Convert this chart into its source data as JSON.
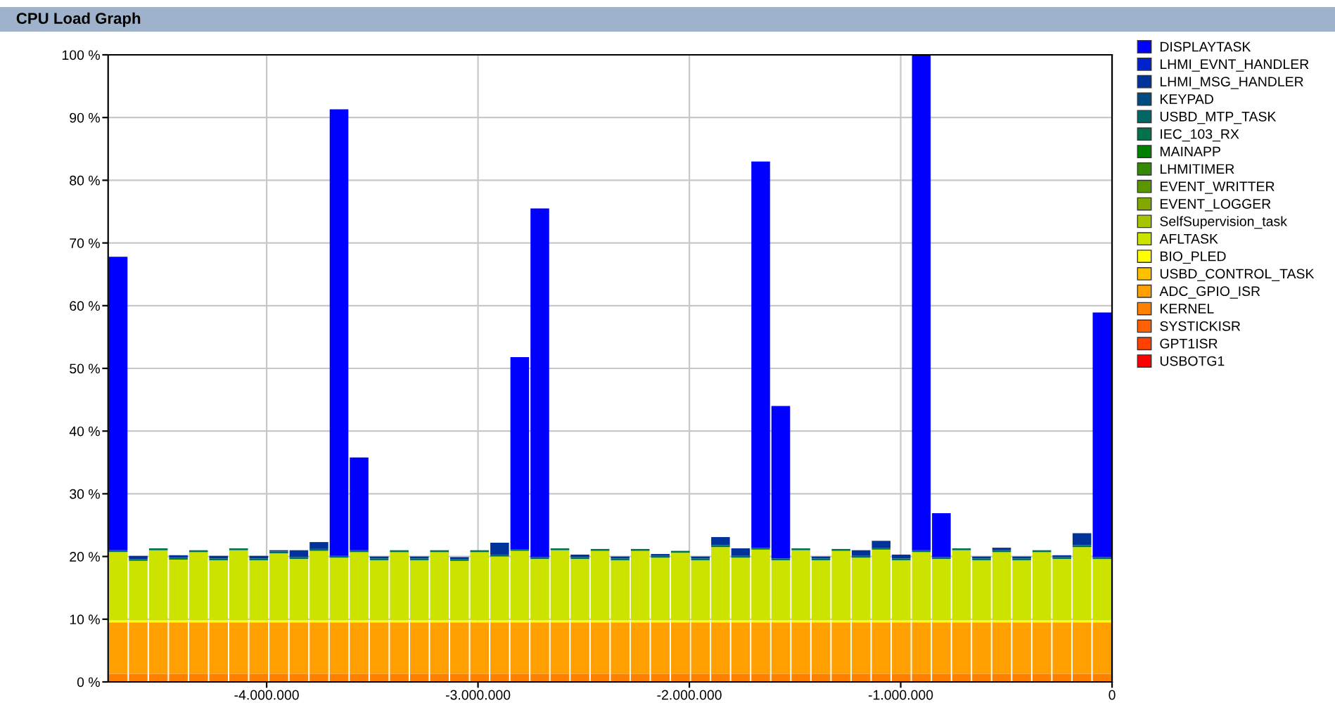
{
  "chart_data": {
    "type": "bar",
    "title": "CPU Load Graph",
    "stacked": true,
    "x": [
      -4702500,
      -4607500,
      -4512500,
      -4417500,
      -4322500,
      -4227500,
      -4132500,
      -4037500,
      -3942500,
      -3847500,
      -3752500,
      -3657500,
      -3562500,
      -3467500,
      -3372500,
      -3277500,
      -3182500,
      -3087500,
      -2992500,
      -2897500,
      -2802500,
      -2707500,
      -2612500,
      -2517500,
      -2422500,
      -2327500,
      -2232500,
      -2137500,
      -2042500,
      -1947500,
      -1852500,
      -1757500,
      -1662500,
      -1567500,
      -1472500,
      -1377500,
      -1282500,
      -1187500,
      -1092500,
      -997500,
      -902500,
      -807500,
      -712500,
      -617500,
      -522500,
      -427500,
      -332500,
      -237500,
      -142500,
      -47500
    ],
    "xlim": [
      -4750000,
      0
    ],
    "xticks": [
      {
        "value": -4000000,
        "label": "-4.000.000"
      },
      {
        "value": -3000000,
        "label": "-3.000.000"
      },
      {
        "value": -2000000,
        "label": "-2.000.000"
      },
      {
        "value": -1000000,
        "label": "-1.000.000"
      },
      0
    ],
    "ylim": [
      0,
      100
    ],
    "yticks": [
      {
        "value": 0,
        "label": "0 %"
      },
      {
        "value": 10,
        "label": "10 %"
      },
      {
        "value": 20,
        "label": "20 %"
      },
      {
        "value": 30,
        "label": "30 %"
      },
      {
        "value": 40,
        "label": "40 %"
      },
      {
        "value": 50,
        "label": "50 %"
      },
      {
        "value": 60,
        "label": "60 %"
      },
      {
        "value": 70,
        "label": "70 %"
      },
      {
        "value": 80,
        "label": "80 %"
      },
      {
        "value": 90,
        "label": "90 %"
      },
      {
        "value": 100,
        "label": "100 %"
      }
    ],
    "grid": true,
    "legend": "right",
    "series": [
      {
        "name": "USBOTG1",
        "color": "#ff0000",
        "values": [
          0,
          0,
          0,
          0,
          0,
          0,
          0,
          0,
          0,
          0,
          0,
          0,
          0,
          0,
          0,
          0,
          0,
          0,
          0,
          0,
          0,
          0,
          0,
          0,
          0,
          0,
          0,
          0,
          0,
          0,
          0,
          0,
          0,
          0,
          0,
          0,
          0,
          0,
          0,
          0,
          0,
          0,
          0,
          0,
          0,
          0,
          0,
          0,
          0,
          0
        ]
      },
      {
        "name": "GPT1ISR",
        "color": "#ff4000",
        "values": [
          0,
          0,
          0,
          0,
          0,
          0,
          0,
          0,
          0,
          0,
          0,
          0,
          0,
          0,
          0,
          0,
          0,
          0,
          0,
          0,
          0,
          0,
          0,
          0,
          0,
          0,
          0,
          0,
          0,
          0,
          0,
          0,
          0,
          0,
          0,
          0,
          0,
          0,
          0,
          0,
          0,
          0,
          0,
          0,
          0,
          0,
          0,
          0,
          0,
          0
        ]
      },
      {
        "name": "SYSTICKISR",
        "color": "#ff6000",
        "values": [
          0,
          0,
          0,
          0,
          0,
          0,
          0,
          0,
          0,
          0,
          0,
          0,
          0,
          0,
          0,
          0,
          0,
          0,
          0,
          0,
          0,
          0,
          0,
          0,
          0,
          0,
          0,
          0,
          0,
          0,
          0,
          0,
          0,
          0,
          0,
          0,
          0,
          0,
          0,
          0,
          0,
          0,
          0,
          0,
          0,
          0,
          0,
          0,
          0,
          0
        ]
      },
      {
        "name": "KERNEL",
        "color": "#ff8000",
        "values": [
          1.3,
          1.3,
          1.3,
          1.3,
          1.3,
          1.3,
          1.3,
          1.3,
          1.3,
          1.3,
          1.3,
          1.3,
          1.3,
          1.3,
          1.3,
          1.3,
          1.3,
          1.3,
          1.3,
          1.3,
          1.3,
          1.3,
          1.3,
          1.3,
          1.3,
          1.3,
          1.3,
          1.3,
          1.3,
          1.3,
          1.3,
          1.3,
          1.3,
          1.3,
          1.3,
          1.3,
          1.3,
          1.3,
          1.3,
          1.3,
          1.3,
          1.3,
          1.3,
          1.3,
          1.3,
          1.3,
          1.3,
          1.3,
          1.3,
          1.3
        ]
      },
      {
        "name": "ADC_GPIO_ISR",
        "color": "#ff9f00",
        "values": [
          8.2,
          8.2,
          8.2,
          8.2,
          8.2,
          8.2,
          8.2,
          8.2,
          8.2,
          8.2,
          8.2,
          8.2,
          8.2,
          8.2,
          8.2,
          8.2,
          8.2,
          8.2,
          8.2,
          8.2,
          8.2,
          8.2,
          8.2,
          8.2,
          8.2,
          8.2,
          8.2,
          8.2,
          8.2,
          8.2,
          8.2,
          8.2,
          8.2,
          8.2,
          8.2,
          8.2,
          8.2,
          8.2,
          8.2,
          8.2,
          8.2,
          8.2,
          8.2,
          8.2,
          8.2,
          8.2,
          8.2,
          8.2,
          8.2,
          8.2
        ]
      },
      {
        "name": "USBD_CONTROL_TASK",
        "color": "#ffc000",
        "values": [
          0,
          0,
          0,
          0,
          0,
          0,
          0,
          0,
          0,
          0,
          0,
          0,
          0,
          0,
          0,
          0,
          0,
          0,
          0,
          0,
          0,
          0,
          0,
          0,
          0,
          0,
          0,
          0,
          0,
          0,
          0,
          0,
          0,
          0,
          0,
          0,
          0,
          0,
          0,
          0,
          0,
          0,
          0,
          0,
          0,
          0,
          0,
          0,
          0,
          0
        ]
      },
      {
        "name": "BIO_PLED",
        "color": "#ffff00",
        "values": [
          0.3,
          0.3,
          0.3,
          0.3,
          0.3,
          0.3,
          0.3,
          0.3,
          0.3,
          0.3,
          0.3,
          0.3,
          0.3,
          0.3,
          0.3,
          0.3,
          0.3,
          0.3,
          0.3,
          0.3,
          0.3,
          0.3,
          0.3,
          0.3,
          0.3,
          0.3,
          0.3,
          0.3,
          0.3,
          0.3,
          0.3,
          0.3,
          0.3,
          0.3,
          0.3,
          0.3,
          0.3,
          0.3,
          0.3,
          0.3,
          0.3,
          0.3,
          0.3,
          0.3,
          0.3,
          0.3,
          0.3,
          0.3,
          0.3,
          0.3
        ]
      },
      {
        "name": "AFLTASK",
        "color": "#cce300",
        "values": [
          10.9,
          9.5,
          11.2,
          9.7,
          10.9,
          9.6,
          11.2,
          9.6,
          10.7,
          9.8,
          11.1,
          10.0,
          10.9,
          9.6,
          10.9,
          9.6,
          10.9,
          9.5,
          10.9,
          10.2,
          11.1,
          9.8,
          11.2,
          9.8,
          11.1,
          9.6,
          11.1,
          10.0,
          10.8,
          9.6,
          11.7,
          10.0,
          11.3,
          9.6,
          11.2,
          9.6,
          11.1,
          10.0,
          11.3,
          9.6,
          10.9,
          9.8,
          11.2,
          9.6,
          10.9,
          9.6,
          10.9,
          9.8,
          11.7,
          9.8
        ]
      },
      {
        "name": "SelfSupervision_task",
        "color": "#a8c400",
        "values": [
          0,
          0,
          0,
          0,
          0,
          0,
          0,
          0,
          0,
          0,
          0,
          0,
          0,
          0,
          0,
          0,
          0,
          0,
          0,
          0,
          0,
          0,
          0,
          0,
          0,
          0,
          0,
          0,
          0,
          0,
          0,
          0,
          0,
          0,
          0,
          0,
          0,
          0,
          0,
          0,
          0,
          0,
          0,
          0,
          0,
          0,
          0,
          0,
          0,
          0
        ]
      },
      {
        "name": "EVENT_LOGGER",
        "color": "#80a800",
        "values": [
          0,
          0,
          0,
          0,
          0,
          0,
          0,
          0,
          0,
          0,
          0,
          0,
          0,
          0,
          0,
          0,
          0,
          0,
          0,
          0,
          0,
          0,
          0,
          0,
          0,
          0,
          0,
          0,
          0,
          0,
          0,
          0,
          0,
          0,
          0,
          0,
          0,
          0,
          0,
          0,
          0,
          0,
          0,
          0,
          0,
          0,
          0,
          0,
          0,
          0
        ]
      },
      {
        "name": "EVENT_WRITTER",
        "color": "#5a9600",
        "values": [
          0,
          0,
          0,
          0,
          0,
          0,
          0,
          0,
          0,
          0,
          0,
          0,
          0,
          0,
          0,
          0,
          0,
          0,
          0,
          0,
          0,
          0,
          0,
          0,
          0,
          0,
          0,
          0,
          0,
          0,
          0,
          0,
          0,
          0,
          0,
          0,
          0,
          0,
          0,
          0,
          0,
          0,
          0,
          0,
          0,
          0,
          0,
          0,
          0,
          0
        ]
      },
      {
        "name": "LHMITIMER",
        "color": "#348a00",
        "values": [
          0,
          0,
          0,
          0,
          0,
          0,
          0,
          0,
          0,
          0,
          0,
          0,
          0,
          0,
          0,
          0,
          0,
          0,
          0,
          0,
          0,
          0,
          0,
          0,
          0,
          0,
          0,
          0,
          0,
          0,
          0,
          0,
          0,
          0,
          0,
          0,
          0,
          0,
          0,
          0,
          0,
          0,
          0,
          0,
          0,
          0,
          0,
          0,
          0,
          0
        ]
      },
      {
        "name": "MAINAPP",
        "color": "#008000",
        "values": [
          0,
          0,
          0,
          0,
          0,
          0,
          0,
          0,
          0,
          0,
          0,
          0,
          0,
          0,
          0,
          0,
          0,
          0,
          0,
          0,
          0,
          0,
          0,
          0,
          0,
          0,
          0,
          0,
          0,
          0,
          0,
          0,
          0,
          0,
          0,
          0,
          0,
          0,
          0,
          0,
          0,
          0,
          0,
          0,
          0,
          0,
          0,
          0,
          0,
          0
        ]
      },
      {
        "name": "IEC_103_RX",
        "color": "#00734d",
        "values": [
          0.3,
          0.3,
          0.3,
          0.3,
          0.3,
          0.3,
          0.3,
          0.3,
          0.3,
          0.3,
          0.3,
          0.3,
          0.3,
          0.3,
          0.3,
          0.3,
          0.3,
          0.3,
          0.3,
          0.3,
          0.3,
          0.3,
          0.3,
          0.3,
          0.3,
          0.3,
          0.3,
          0.3,
          0.3,
          0.3,
          0.3,
          0.3,
          0.3,
          0.3,
          0.3,
          0.3,
          0.3,
          0.3,
          0.3,
          0.3,
          0.3,
          0.3,
          0.3,
          0.3,
          0.3,
          0.3,
          0.3,
          0.3,
          0.3,
          0.3
        ]
      },
      {
        "name": "USBD_MTP_TASK",
        "color": "#006666",
        "values": [
          0,
          0,
          0,
          0,
          0,
          0,
          0,
          0,
          0,
          0,
          0,
          0,
          0,
          0,
          0,
          0,
          0,
          0,
          0,
          0,
          0,
          0,
          0,
          0,
          0,
          0,
          0,
          0,
          0,
          0,
          0,
          0,
          0,
          0,
          0,
          0,
          0,
          0,
          0,
          0,
          0,
          0,
          0,
          0,
          0,
          0,
          0,
          0,
          0,
          0
        ]
      },
      {
        "name": "KEYPAD",
        "color": "#004c80",
        "values": [
          0,
          0,
          0,
          0,
          0,
          0,
          0,
          0,
          0,
          0,
          0,
          0,
          0,
          0,
          0,
          0,
          0,
          0,
          0,
          0,
          0,
          0,
          0,
          0,
          0,
          0,
          0,
          0,
          0,
          0,
          0,
          0,
          0,
          0,
          0,
          0,
          0,
          0,
          0,
          0,
          0,
          0,
          0,
          0,
          0,
          0,
          0,
          0,
          0,
          0
        ]
      },
      {
        "name": "LHMI_MSG_HANDLER",
        "color": "#003399",
        "values": [
          0,
          0.5,
          0,
          0.4,
          0,
          0.4,
          0,
          0.4,
          0.2,
          1.1,
          1.1,
          0,
          0,
          0.3,
          0,
          0.3,
          0,
          0.3,
          0,
          1.9,
          0,
          0,
          0,
          0.4,
          0,
          0.3,
          0,
          0.3,
          0,
          0.3,
          1.3,
          1.2,
          0,
          0,
          0,
          0.3,
          0,
          0.9,
          1.1,
          0.6,
          0,
          0,
          0,
          0.3,
          0.4,
          0.3,
          0,
          0.3,
          1.9,
          0
        ]
      },
      {
        "name": "LHMI_EVNT_HANDLER",
        "color": "#0022cc",
        "values": [
          0,
          0,
          0,
          0,
          0,
          0,
          0,
          0,
          0,
          0,
          0,
          0,
          0,
          0,
          0,
          0,
          0,
          0,
          0,
          0,
          0,
          0,
          0,
          0,
          0,
          0,
          0,
          0,
          0,
          0,
          0,
          0,
          0,
          0,
          0,
          0,
          0,
          0,
          0,
          0,
          0,
          0,
          0,
          0,
          0,
          0,
          0,
          0,
          0,
          0
        ]
      },
      {
        "name": "DISPLAYTASK",
        "color": "#0000ff",
        "values": [
          46.8,
          0,
          0,
          0,
          0,
          0,
          0,
          0,
          0,
          0,
          0,
          71.2,
          14.8,
          0,
          0,
          0,
          0,
          0,
          0,
          0,
          30.6,
          55.6,
          0,
          0,
          0,
          0,
          0,
          0,
          0,
          0,
          0,
          0,
          61.6,
          24.3,
          0,
          0,
          0,
          0,
          0,
          0,
          79.0,
          7.0,
          0,
          0,
          0,
          0,
          0,
          0,
          0,
          39.0
        ]
      }
    ]
  }
}
